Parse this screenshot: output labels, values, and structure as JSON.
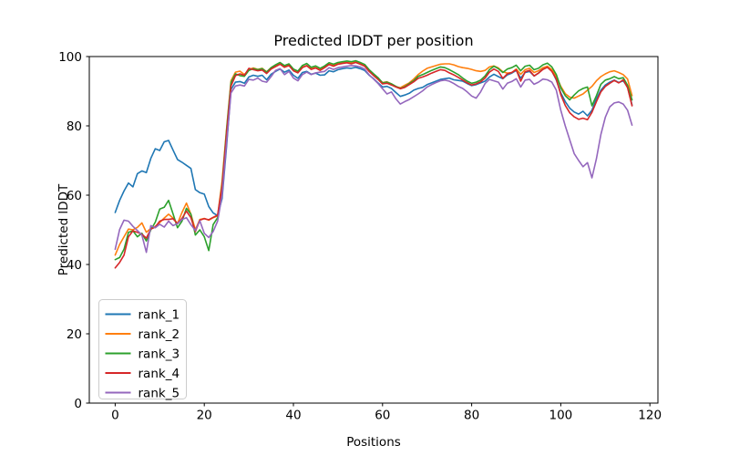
{
  "figure": {
    "background": "#ffffff",
    "border_color": "#000000"
  },
  "chart_data": {
    "type": "line",
    "title": "Predicted lDDT per position",
    "xlabel": "Positions",
    "ylabel": "Predicted lDDT",
    "xlim": [
      -5.8,
      121.8
    ],
    "ylim": [
      0,
      100
    ],
    "xticks": [
      0,
      20,
      40,
      60,
      80,
      100,
      120
    ],
    "yticks": [
      0,
      20,
      40,
      60,
      80,
      100
    ],
    "grid": false,
    "legend_position": "lower left",
    "x_start": 0,
    "x_step": 1,
    "n_points": 117,
    "series": [
      {
        "name": "rank_1",
        "color": "#1f77b4",
        "values": [
          55.0,
          58.5,
          61.2,
          63.5,
          62.4,
          66.2,
          67.0,
          66.5,
          70.6,
          73.4,
          72.9,
          75.4,
          75.8,
          73.0,
          70.3,
          69.5,
          68.6,
          67.7,
          61.6,
          60.7,
          60.3,
          56.7,
          54.9,
          54.1,
          59.0,
          74.0,
          90.5,
          92.6,
          92.8,
          92.3,
          94.1,
          94.6,
          94.3,
          94.6,
          93.3,
          94.9,
          95.7,
          96.4,
          95.5,
          96.1,
          94.6,
          93.7,
          95.4,
          95.7,
          94.9,
          95.2,
          94.6,
          94.7,
          95.9,
          95.6,
          96.2,
          96.5,
          96.7,
          96.6,
          96.9,
          96.5,
          96.0,
          94.6,
          93.6,
          92.4,
          91.2,
          91.4,
          90.8,
          89.6,
          88.5,
          88.9,
          89.4,
          90.3,
          90.8,
          91.1,
          91.9,
          92.4,
          92.9,
          93.4,
          93.6,
          93.8,
          93.3,
          93.1,
          92.9,
          92.2,
          91.6,
          91.9,
          92.4,
          92.9,
          94.1,
          94.9,
          94.2,
          93.6,
          94.7,
          95.2,
          96.0,
          93.8,
          95.4,
          95.7,
          94.4,
          95.2,
          96.5,
          97.0,
          95.9,
          93.2,
          89.5,
          87.0,
          85.1,
          84.0,
          83.4,
          84.2,
          82.9,
          84.5,
          87.8,
          90.3,
          91.8,
          92.6,
          93.2,
          92.5,
          93.0,
          91.2,
          86.0
        ]
      },
      {
        "name": "rank_2",
        "color": "#ff7f0e",
        "values": [
          42.7,
          45.8,
          48.0,
          50.2,
          50.0,
          50.7,
          52.0,
          49.3,
          50.4,
          51.0,
          52.1,
          53.4,
          54.5,
          53.4,
          51.8,
          55.0,
          57.7,
          54.5,
          50.0,
          53.0,
          53.3,
          52.8,
          53.5,
          54.0,
          64.0,
          79.0,
          93.0,
          95.5,
          95.8,
          94.8,
          96.2,
          96.7,
          96.3,
          96.6,
          95.6,
          96.8,
          97.5,
          98.0,
          97.2,
          97.7,
          96.2,
          95.4,
          97.0,
          97.3,
          96.5,
          96.8,
          96.2,
          96.9,
          97.8,
          97.4,
          98.0,
          98.2,
          98.3,
          98.2,
          98.4,
          98.0,
          97.4,
          96.0,
          94.8,
          93.7,
          92.5,
          92.7,
          92.1,
          91.3,
          91.0,
          91.7,
          92.4,
          93.5,
          94.8,
          95.8,
          96.6,
          97.0,
          97.4,
          97.8,
          97.9,
          97.9,
          97.6,
          97.1,
          96.8,
          96.6,
          96.3,
          95.9,
          95.7,
          96.0,
          97.0,
          97.3,
          96.7,
          95.6,
          95.2,
          95.4,
          96.4,
          94.9,
          96.2,
          96.6,
          95.4,
          95.9,
          96.8,
          97.2,
          96.2,
          94.3,
          91.4,
          89.3,
          88.3,
          88.0,
          88.6,
          89.2,
          90.3,
          91.4,
          93.0,
          94.2,
          95.0,
          95.6,
          95.9,
          95.4,
          94.8,
          93.5,
          88.7
        ]
      },
      {
        "name": "rank_3",
        "color": "#2ca02c",
        "values": [
          41.4,
          42.0,
          44.4,
          49.3,
          49.7,
          48.0,
          49.0,
          46.8,
          50.0,
          52.2,
          56.0,
          56.5,
          58.5,
          54.6,
          50.6,
          52.5,
          56.2,
          54.5,
          48.5,
          50.0,
          48.0,
          44.0,
          51.5,
          53.5,
          63.0,
          78.5,
          92.5,
          95.0,
          94.5,
          94.3,
          96.0,
          96.5,
          96.2,
          96.5,
          95.5,
          96.8,
          97.6,
          98.3,
          97.4,
          97.9,
          96.4,
          95.8,
          97.4,
          98.0,
          96.9,
          97.3,
          96.6,
          97.3,
          98.2,
          97.8,
          98.3,
          98.5,
          98.7,
          98.5,
          98.8,
          98.3,
          97.7,
          96.2,
          95.0,
          93.9,
          92.4,
          92.6,
          92.1,
          91.4,
          90.8,
          91.3,
          92.2,
          93.0,
          94.3,
          94.8,
          95.4,
          96.0,
          96.5,
          97.0,
          96.8,
          96.2,
          95.5,
          94.8,
          93.8,
          92.9,
          92.3,
          92.6,
          93.2,
          94.4,
          96.2,
          97.2,
          96.5,
          95.4,
          96.4,
          96.8,
          97.5,
          95.9,
          97.2,
          97.5,
          96.2,
          96.6,
          97.6,
          98.1,
          97.0,
          94.8,
          91.0,
          88.7,
          87.5,
          88.9,
          90.1,
          90.8,
          91.2,
          85.8,
          88.7,
          92.0,
          93.2,
          93.6,
          94.2,
          93.6,
          93.9,
          91.7,
          87.5
        ]
      },
      {
        "name": "rank_4",
        "color": "#d62728",
        "values": [
          39.0,
          40.6,
          42.7,
          48.0,
          49.7,
          49.3,
          48.7,
          47.6,
          50.2,
          50.8,
          52.5,
          53.0,
          53.0,
          53.2,
          51.8,
          53.3,
          55.4,
          53.5,
          49.5,
          52.8,
          53.2,
          52.9,
          53.6,
          54.2,
          62.5,
          77.5,
          91.5,
          94.5,
          95.0,
          94.6,
          96.6,
          96.2,
          95.9,
          96.1,
          95.1,
          96.4,
          97.1,
          97.8,
          96.9,
          97.4,
          95.9,
          95.3,
          96.8,
          97.4,
          96.3,
          96.7,
          96.0,
          96.8,
          97.7,
          97.2,
          97.8,
          98.0,
          98.2,
          97.9,
          98.3,
          97.8,
          97.2,
          95.7,
          94.5,
          93.4,
          92.1,
          92.3,
          91.8,
          91.2,
          90.7,
          91.1,
          91.9,
          92.7,
          93.7,
          94.1,
          94.6,
          95.2,
          95.7,
          96.2,
          96.0,
          95.3,
          94.7,
          94.0,
          93.2,
          92.4,
          91.8,
          92.1,
          92.7,
          93.8,
          95.5,
          96.4,
          95.7,
          93.7,
          95.0,
          95.4,
          96.2,
          92.9,
          95.6,
          96.0,
          94.4,
          95.2,
          96.3,
          96.9,
          95.7,
          93.5,
          89.0,
          85.9,
          83.8,
          82.6,
          81.9,
          82.2,
          81.8,
          83.9,
          87.0,
          89.8,
          91.4,
          92.3,
          93.1,
          92.4,
          93.3,
          91.0,
          85.8
        ]
      },
      {
        "name": "rank_5",
        "color": "#9467bd",
        "values": [
          44.4,
          50.1,
          52.8,
          52.5,
          51.0,
          49.8,
          48.5,
          43.5,
          51.2,
          50.6,
          51.6,
          50.8,
          52.5,
          51.2,
          51.8,
          53.0,
          53.5,
          51.5,
          49.8,
          52.6,
          49.0,
          47.8,
          49.5,
          52.5,
          60.0,
          75.0,
          89.5,
          91.5,
          91.8,
          91.5,
          93.4,
          93.2,
          93.8,
          92.9,
          92.6,
          94.2,
          96.0,
          96.5,
          94.8,
          95.7,
          93.8,
          93.0,
          94.8,
          95.5,
          94.8,
          95.3,
          95.5,
          95.7,
          96.8,
          96.3,
          96.8,
          97.0,
          97.2,
          97.4,
          97.3,
          97.0,
          96.4,
          94.7,
          93.5,
          92.2,
          90.7,
          89.2,
          89.8,
          87.8,
          86.3,
          87.0,
          87.6,
          88.4,
          89.2,
          90.1,
          91.2,
          91.9,
          92.5,
          93.0,
          93.2,
          92.9,
          92.2,
          91.4,
          90.8,
          89.8,
          88.6,
          88.0,
          89.8,
          92.2,
          93.4,
          93.0,
          92.6,
          90.6,
          92.3,
          92.8,
          93.6,
          91.2,
          93.2,
          93.4,
          92.0,
          92.6,
          93.5,
          93.3,
          92.6,
          90.3,
          84.5,
          80.0,
          76.0,
          72.0,
          70.0,
          68.2,
          69.4,
          65.0,
          70.5,
          77.5,
          82.5,
          85.5,
          86.6,
          86.9,
          86.3,
          84.5,
          80.2
        ]
      }
    ]
  }
}
